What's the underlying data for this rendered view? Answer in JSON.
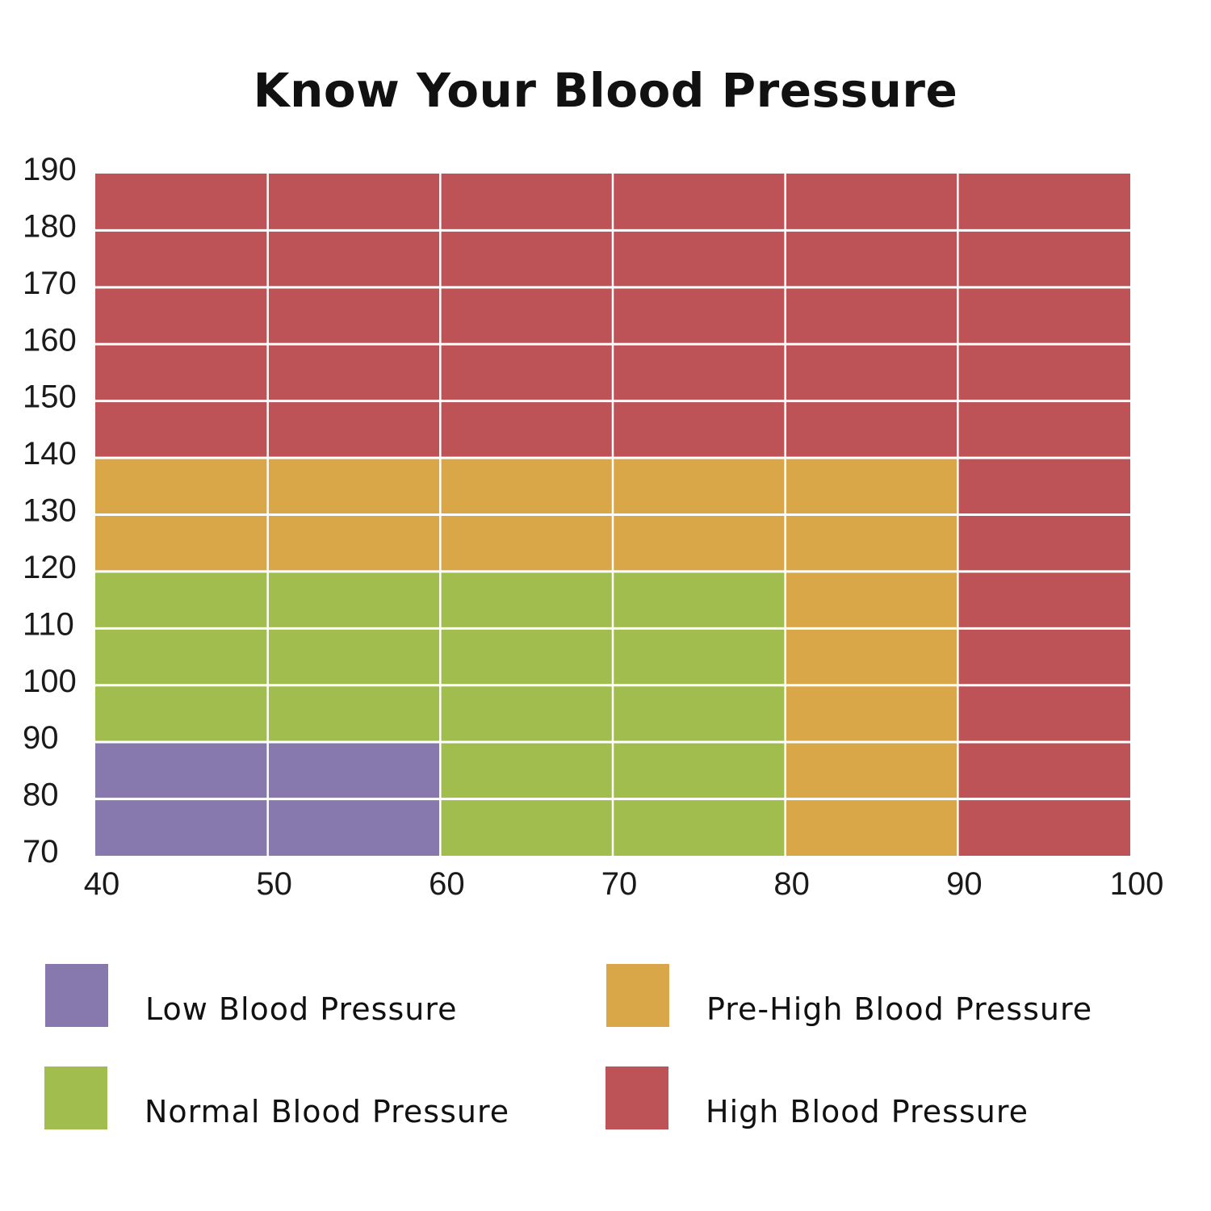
{
  "chart_data": {
    "type": "heatmap",
    "title": "Know Your Blood Pressure",
    "xlabel": "",
    "ylabel": "",
    "x_ticks": [
      40,
      50,
      60,
      70,
      80,
      90,
      100
    ],
    "y_ticks": [
      70,
      80,
      90,
      100,
      110,
      120,
      130,
      140,
      150,
      160,
      170,
      180,
      190
    ],
    "xlim": [
      40,
      100
    ],
    "ylim": [
      70,
      190
    ],
    "grid": true,
    "legend_placement": "bottom",
    "categories": {
      "low": {
        "label": "Low Blood Pressure",
        "color": "#8779ae"
      },
      "normal": {
        "label": "Normal Blood Pressure",
        "color": "#a1bd4e"
      },
      "prehigh": {
        "label": "Pre-High Blood Pressure",
        "color": "#d9a748"
      },
      "high": {
        "label": "High Blood Pressure",
        "color": "#bd5357"
      }
    },
    "legend_order": [
      "low",
      "prehigh",
      "normal",
      "high"
    ],
    "cells": [
      [
        "low",
        "low",
        "normal",
        "normal",
        "prehigh",
        "high"
      ],
      [
        "low",
        "low",
        "normal",
        "normal",
        "prehigh",
        "high"
      ],
      [
        "normal",
        "normal",
        "normal",
        "normal",
        "prehigh",
        "high"
      ],
      [
        "normal",
        "normal",
        "normal",
        "normal",
        "prehigh",
        "high"
      ],
      [
        "normal",
        "normal",
        "normal",
        "normal",
        "prehigh",
        "high"
      ],
      [
        "prehigh",
        "prehigh",
        "prehigh",
        "prehigh",
        "prehigh",
        "high"
      ],
      [
        "prehigh",
        "prehigh",
        "prehigh",
        "prehigh",
        "prehigh",
        "high"
      ],
      [
        "high",
        "high",
        "high",
        "high",
        "high",
        "high"
      ],
      [
        "high",
        "high",
        "high",
        "high",
        "high",
        "high"
      ],
      [
        "high",
        "high",
        "high",
        "high",
        "high",
        "high"
      ],
      [
        "high",
        "high",
        "high",
        "high",
        "high",
        "high"
      ],
      [
        "high",
        "high",
        "high",
        "high",
        "high",
        "high"
      ]
    ]
  }
}
